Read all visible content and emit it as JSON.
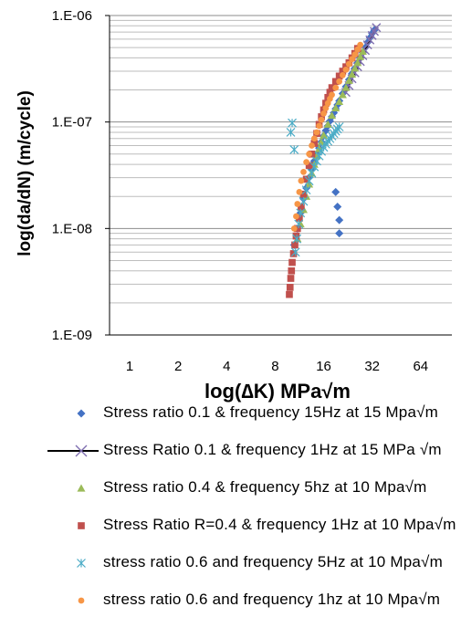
{
  "chart_data": {
    "type": "scatter",
    "title": "",
    "xlabel": "log(∆K)  MPa√m",
    "ylabel": "log(da/dN)  (m/cycle)",
    "x_scale": "log2",
    "y_scale": "log10",
    "xlim": [
      0.75,
      100
    ],
    "ylim": [
      1e-09,
      1e-06
    ],
    "x_ticks": [
      1,
      2,
      4,
      8,
      16,
      32,
      64
    ],
    "x_tick_labels": [
      "1",
      "2",
      "4",
      "8",
      "16",
      "32",
      "64"
    ],
    "y_ticks": [
      1e-09,
      1e-08,
      1e-07,
      1e-06
    ],
    "y_tick_labels": [
      "1.E-09",
      "1.E-08",
      "1.E-07",
      "1.E-06"
    ],
    "grid": true,
    "legend_position": "bottom",
    "series": [
      {
        "name": "Stress ratio 0.1 & frequency  15Hz at 15  Mpa√m",
        "color": "#4472c4",
        "marker": "diamond",
        "x": [
          10.5,
          11,
          11.5,
          12,
          12.5,
          13,
          13.5,
          14,
          14.5,
          15,
          15.5,
          16,
          16.5,
          17,
          17.5,
          18,
          18.5,
          19,
          19.5,
          20,
          21,
          22,
          23,
          24,
          25,
          26,
          27,
          28,
          29,
          30,
          31,
          32,
          33,
          19,
          19.5,
          20,
          20
        ],
        "y": [
          7e-09,
          1e-08,
          1.4e-08,
          1.9e-08,
          2.4e-08,
          3e-08,
          3.6e-08,
          4.3e-08,
          5e-08,
          5.7e-08,
          6.5e-08,
          7.4e-08,
          8.3e-08,
          9.2e-08,
          1.02e-07,
          1.12e-07,
          1.22e-07,
          1.33e-07,
          1.45e-07,
          1.58e-07,
          1.85e-07,
          2.15e-07,
          2.5e-07,
          2.85e-07,
          3.2e-07,
          3.6e-07,
          4e-07,
          4.5e-07,
          5e-07,
          5.6e-07,
          6.2e-07,
          6.8e-07,
          7.3e-07,
          2.2e-08,
          1.6e-08,
          1.2e-08,
          9e-09
        ]
      },
      {
        "name": "Stress Ratio 0.1 & frequency 1Hz at 15 MPa √m",
        "color": "#7f6fb0",
        "marker": "x",
        "line_color": "#000000",
        "x": [
          22,
          23,
          24,
          25,
          26,
          27,
          28,
          29,
          30,
          31,
          32,
          33,
          34
        ],
        "y": [
          1.9e-07,
          2.2e-07,
          2.55e-07,
          2.9e-07,
          3.3e-07,
          3.7e-07,
          4.2e-07,
          4.7e-07,
          5.3e-07,
          5.9e-07,
          6.5e-07,
          7.1e-07,
          7.7e-07
        ]
      },
      {
        "name": "Stress ratio 0.4 &   frequency 5hz at 10  Mpa√m",
        "color": "#9bbb59",
        "marker": "triangle",
        "x": [
          11,
          11.5,
          12,
          12.5,
          13,
          13.5,
          14,
          14.5,
          15,
          15.5,
          16,
          17,
          18,
          19,
          20,
          21,
          22,
          23,
          24,
          25,
          26,
          27,
          28
        ],
        "y": [
          8e-09,
          1.1e-08,
          1.5e-08,
          2e-08,
          2.6e-08,
          3.3e-08,
          4e-08,
          4.8e-08,
          5.6e-08,
          6.5e-08,
          7.5e-08,
          9.5e-08,
          1.15e-07,
          1.35e-07,
          1.55e-07,
          1.8e-07,
          2.1e-07,
          2.45e-07,
          2.8e-07,
          3.2e-07,
          3.6e-07,
          4.1e-07,
          4.6e-07
        ]
      },
      {
        "name": "Stress Ratio  R=0.4 & frequency  1Hz at 10  Mpa√m",
        "color": "#c0504d",
        "marker": "square",
        "x": [
          9.8,
          9.9,
          10,
          10.1,
          10.2,
          10.4,
          10.6,
          10.8,
          11,
          11.3,
          11.6,
          12,
          12.5,
          13,
          13.5,
          14,
          14.5,
          15,
          15.5,
          16,
          16.5,
          17,
          17.5,
          18,
          19,
          20,
          21,
          22,
          23,
          24,
          25,
          26
        ],
        "y": [
          2.4e-09,
          2.8e-09,
          3.4e-09,
          4e-09,
          4.8e-09,
          5.8e-09,
          7e-09,
          8.5e-09,
          1e-08,
          1.25e-08,
          1.6e-08,
          2.1e-08,
          2.9e-08,
          3.9e-08,
          5e-08,
          6.3e-08,
          7.8e-08,
          9.5e-08,
          1.12e-07,
          1.3e-07,
          1.5e-07,
          1.7e-07,
          1.9e-07,
          2.1e-07,
          2.4e-07,
          2.7e-07,
          3e-07,
          3.3e-07,
          3.6e-07,
          4e-07,
          4.4e-07,
          4.9e-07
        ]
      },
      {
        "name": "stress ratio 0.6 and frequency  5Hz at 10  Mpa√m",
        "color": "#4bacc6",
        "marker": "asterisk",
        "x": [
          10,
          10.2,
          10.5,
          10.7,
          10.9,
          11.2,
          11.5,
          12,
          12.5,
          13,
          13.5,
          14,
          14.5,
          15,
          15.5,
          16,
          16.5,
          17,
          17.5,
          18,
          18.5,
          19,
          19.5,
          20
        ],
        "y": [
          8e-08,
          9.8e-08,
          5.5e-08,
          6e-09,
          8e-09,
          1.1e-08,
          1.4e-08,
          1.8e-08,
          2.3e-08,
          2.8e-08,
          3.3e-08,
          3.8e-08,
          4.3e-08,
          4.8e-08,
          5.3e-08,
          5.8e-08,
          6.2e-08,
          6.6e-08,
          7e-08,
          7.4e-08,
          7.8e-08,
          8.2e-08,
          8.6e-08,
          9e-08
        ]
      },
      {
        "name": "stress ratio 0.6 and  frequency  1hz at 10  Mpa√m",
        "color": "#f79646",
        "marker": "dot",
        "x": [
          10.5,
          10.8,
          11,
          11.3,
          11.6,
          12,
          12.5,
          13,
          13.5,
          14,
          14.5,
          15,
          15.5,
          16,
          16.5,
          17,
          17.5,
          18,
          19,
          20,
          21,
          22,
          23,
          24,
          25,
          26,
          27
        ],
        "y": [
          1e-08,
          1.3e-08,
          1.7e-08,
          2.2e-08,
          2.8e-08,
          3.4e-08,
          4.2e-08,
          5e-08,
          6e-08,
          7e-08,
          8e-08,
          9.2e-08,
          1.05e-07,
          1.2e-07,
          1.35e-07,
          1.5e-07,
          1.65e-07,
          1.8e-07,
          2.1e-07,
          2.4e-07,
          2.75e-07,
          3.1e-07,
          3.5e-07,
          3.9e-07,
          4.3e-07,
          4.8e-07,
          5.3e-07
        ]
      }
    ]
  }
}
